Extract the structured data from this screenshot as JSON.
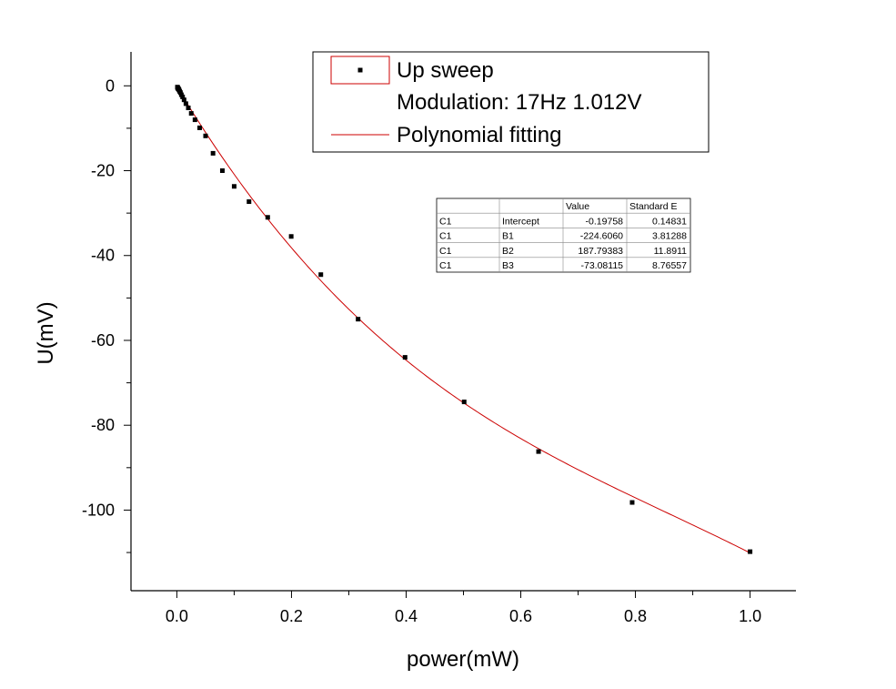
{
  "chart_data": {
    "type": "scatter",
    "xlabel": "power(mW)",
    "ylabel": "U(mV)",
    "xlim": [
      -0.08,
      1.08
    ],
    "ylim": [
      -119,
      8
    ],
    "xticks": [
      0.0,
      0.2,
      0.4,
      0.6,
      0.8,
      1.0
    ],
    "xtick_labels": [
      "0.0",
      "0.2",
      "0.4",
      "0.6",
      "0.8",
      "1.0"
    ],
    "yticks": [
      0,
      -20,
      -40,
      -60,
      -80,
      -100
    ],
    "ytick_labels": [
      "0",
      "-20",
      "-40",
      "-60",
      "-80",
      "-100"
    ],
    "grid": false,
    "legend_position": "top-right",
    "series": [
      {
        "name": "Up sweep",
        "kind": "scatter",
        "color": "#000000",
        "x": [
          0.001,
          0.0013,
          0.0016,
          0.002,
          0.0025,
          0.0032,
          0.004,
          0.005,
          0.0063,
          0.0079,
          0.01,
          0.0126,
          0.0158,
          0.02,
          0.0251,
          0.0316,
          0.0398,
          0.0501,
          0.0631,
          0.0794,
          0.1,
          0.1259,
          0.1585,
          0.1995,
          0.2512,
          0.3162,
          0.3981,
          0.5012,
          0.631,
          0.7943,
          1.0
        ],
        "y": [
          -0.3,
          -0.4,
          -0.5,
          -0.6,
          -0.7,
          -0.8,
          -1.0,
          -1.3,
          -1.6,
          -2.1,
          -2.6,
          -3.3,
          -4.2,
          -5.2,
          -6.5,
          -8.0,
          -9.9,
          -11.8,
          -15.9,
          -20.0,
          -23.7,
          -27.3,
          -31.0,
          -35.5,
          -44.5,
          -55.0,
          -64.0,
          -74.5,
          -86.2,
          -98.2,
          -109.8
        ]
      },
      {
        "name": "Polynomial fitting",
        "kind": "line",
        "color": "#cc0000",
        "x_range": [
          0.0,
          1.0
        ],
        "model": "y = Intercept + B1*x + B2*x^2 + B3*x^3"
      }
    ],
    "legend": {
      "entries": [
        "Up sweep",
        "Modulation: 17Hz 1.012V",
        "Polynomial fitting"
      ]
    },
    "fit_table": {
      "headers": [
        "",
        "",
        "Value",
        "Standard E"
      ],
      "rows": [
        [
          "C1",
          "Intercept",
          "-0.19758",
          "0.14831"
        ],
        [
          "C1",
          "B1",
          "-224.6060",
          "3.81288"
        ],
        [
          "C1",
          "B2",
          "187.79383",
          "11.8911"
        ],
        [
          "C1",
          "B3",
          "-73.08115",
          "8.76557"
        ]
      ]
    }
  }
}
